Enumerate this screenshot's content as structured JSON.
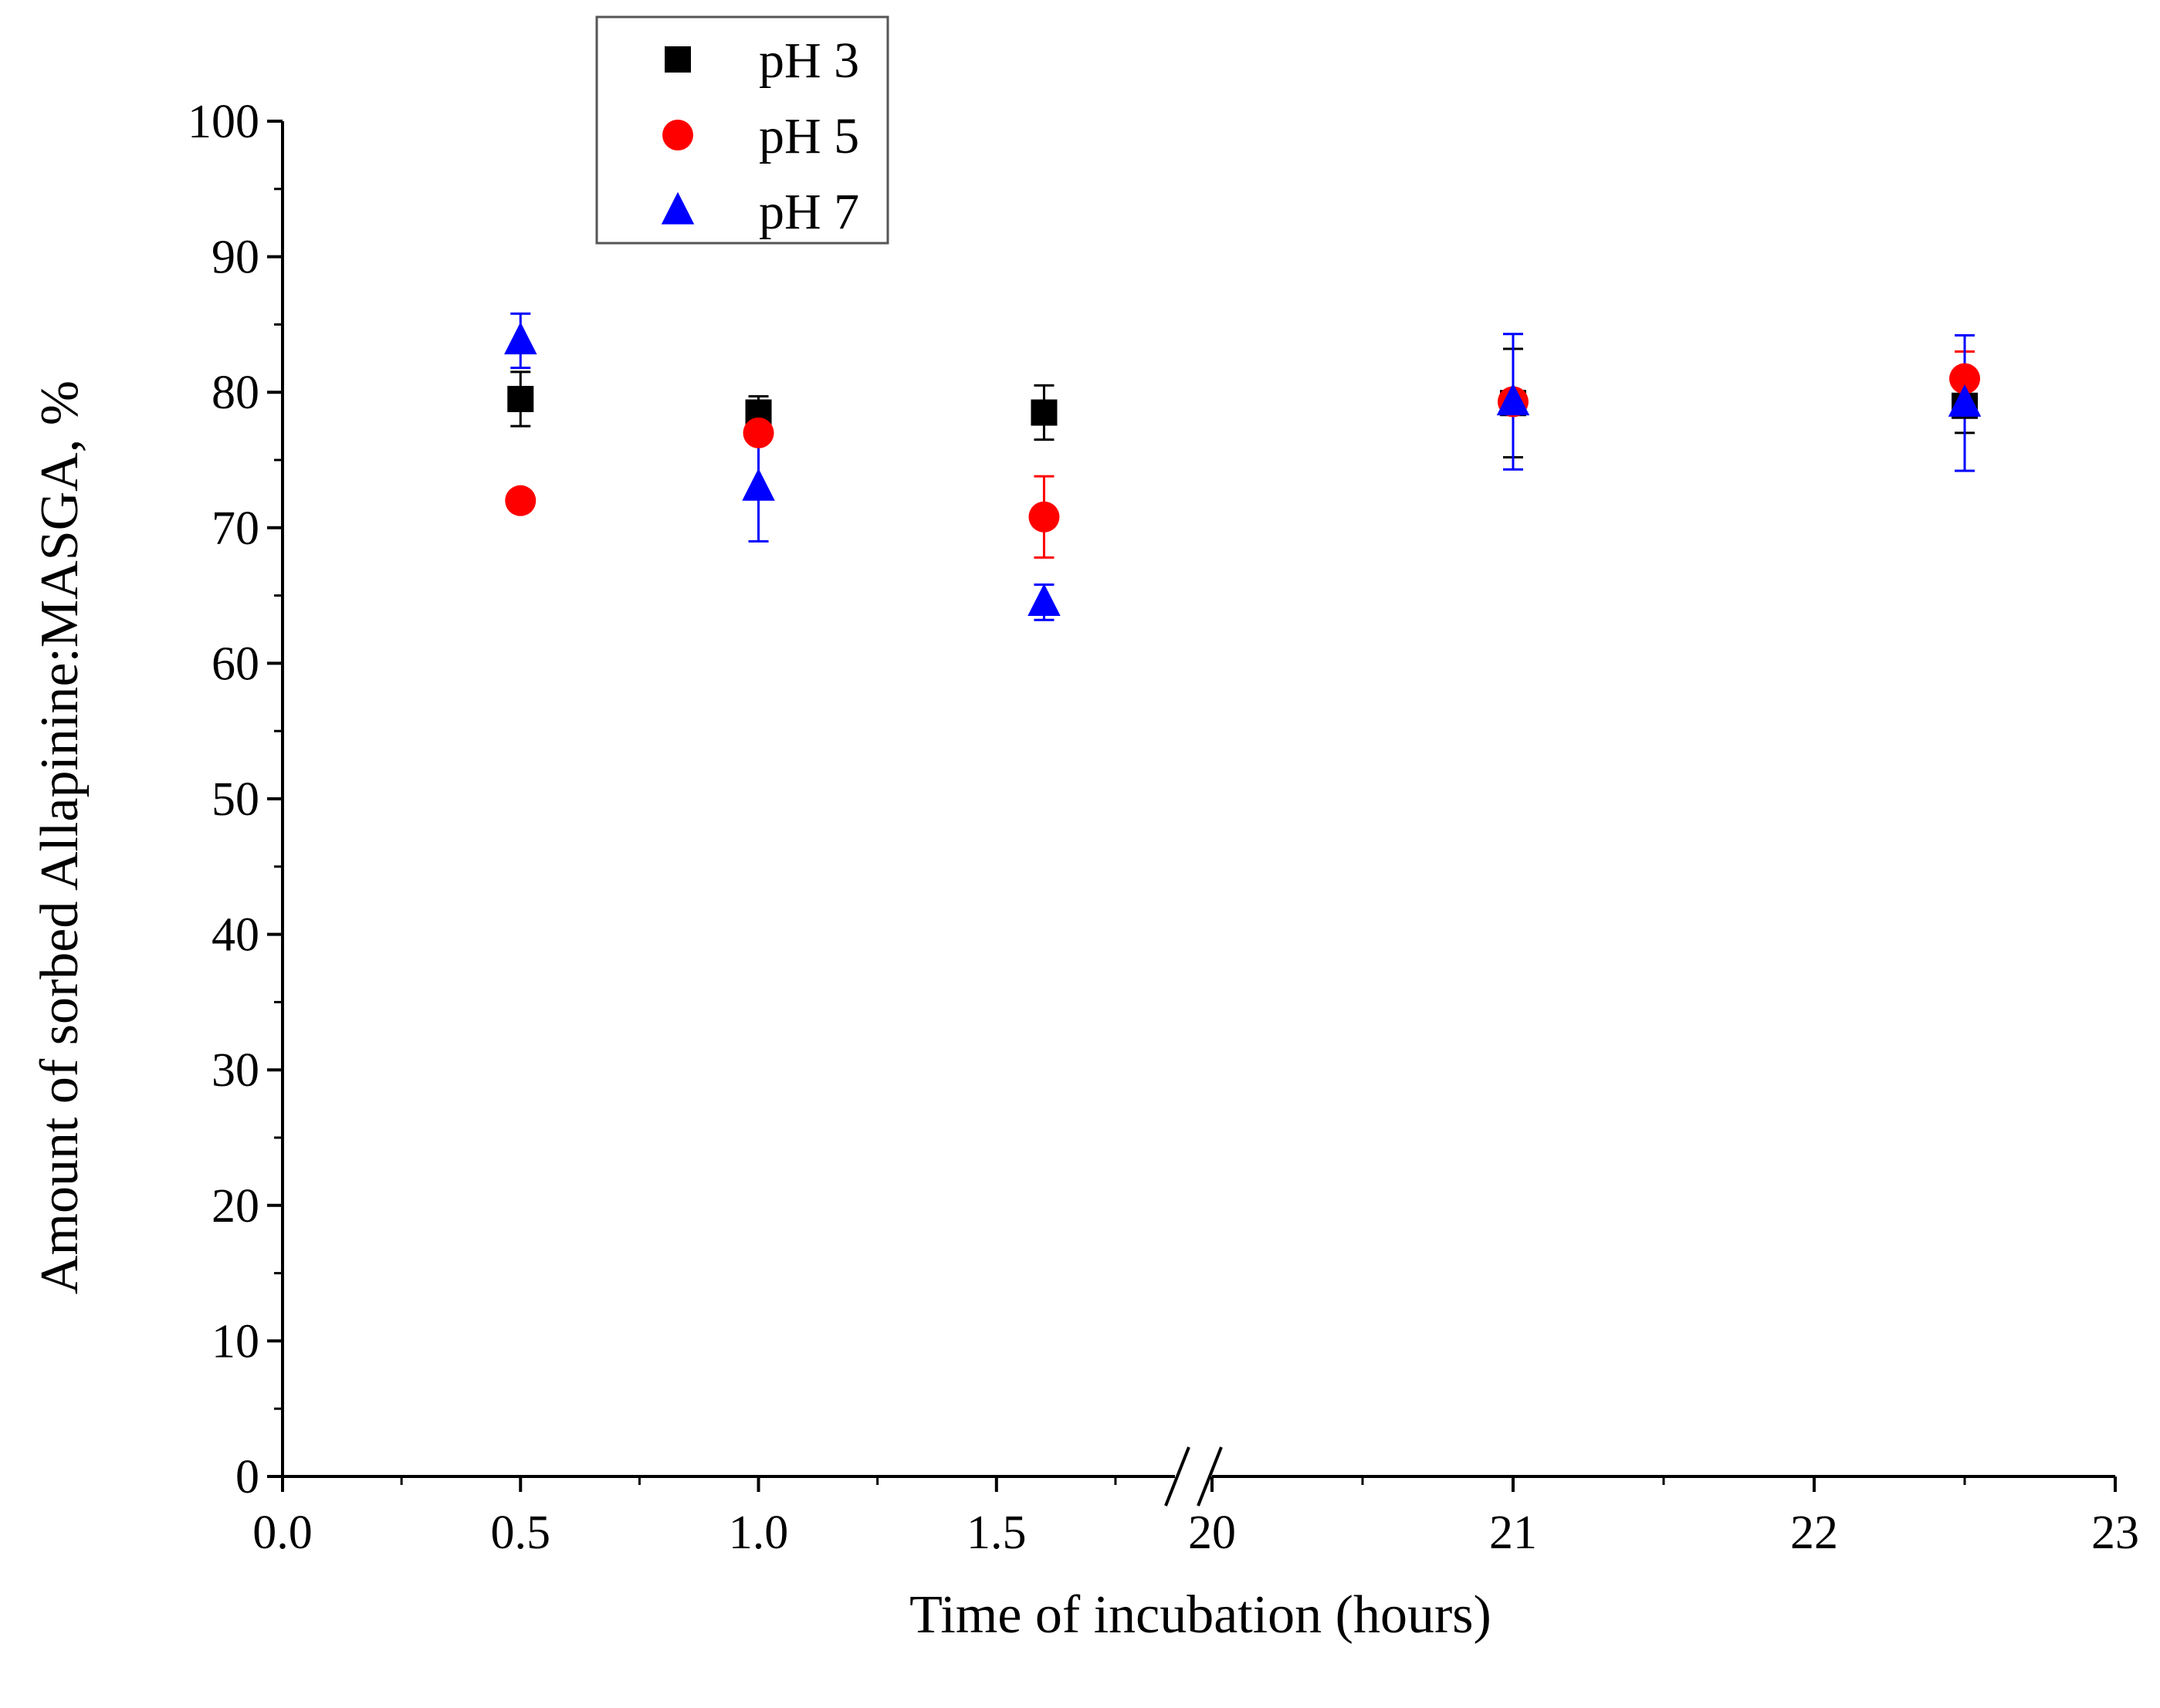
{
  "chart_data": {
    "type": "scatter",
    "xlabel": "Time of incubation (hours)",
    "ylabel": "Amount of sorbed Allapinine:MASGA, %",
    "ylim": [
      0,
      100
    ],
    "yticks": [
      0,
      10,
      20,
      30,
      40,
      50,
      60,
      70,
      80,
      90,
      100
    ],
    "axis_break": true,
    "x_segments": [
      {
        "range": [
          0,
          1.875
        ],
        "ticks": [
          0.0,
          0.5,
          1.0,
          1.5
        ],
        "tick_labels": [
          "0.0",
          "0.5",
          "1.0",
          "1.5"
        ]
      },
      {
        "range": [
          20,
          23
        ],
        "ticks": [
          20,
          21,
          22,
          23
        ],
        "tick_labels": [
          "20",
          "21",
          "22",
          "23"
        ]
      }
    ],
    "legend_position": "top-left",
    "series": [
      {
        "name": "pH 3",
        "color": "#000000",
        "marker": "square",
        "points": [
          {
            "x": 0.5,
            "y": 79.5,
            "err": 2.0
          },
          {
            "x": 1.0,
            "y": 78.5,
            "err": 1.2
          },
          {
            "x": 1.6,
            "y": 78.5,
            "err": 2.0
          },
          {
            "x": 21,
            "y": 79.2,
            "err": 4.0
          },
          {
            "x": 22.5,
            "y": 79.0,
            "err": 2.0
          }
        ]
      },
      {
        "name": "pH 5",
        "color": "#ff0000",
        "marker": "circle",
        "points": [
          {
            "x": 0.5,
            "y": 72.0,
            "err": 0.5
          },
          {
            "x": 1.0,
            "y": 77.0,
            "err": 0.5
          },
          {
            "x": 1.6,
            "y": 70.8,
            "err": 3.0
          },
          {
            "x": 21,
            "y": 79.3,
            "err": 0.8
          },
          {
            "x": 22.5,
            "y": 81.0,
            "err": 2.0
          }
        ]
      },
      {
        "name": "pH 7",
        "color": "#0000ff",
        "marker": "triangle",
        "points": [
          {
            "x": 0.5,
            "y": 83.8,
            "err": 2.0
          },
          {
            "x": 1.0,
            "y": 73.0,
            "err": 4.0
          },
          {
            "x": 1.6,
            "y": 64.5,
            "err": 1.3
          },
          {
            "x": 21,
            "y": 79.3,
            "err": 5.0
          },
          {
            "x": 22.5,
            "y": 79.2,
            "err": 5.0
          }
        ]
      }
    ]
  }
}
